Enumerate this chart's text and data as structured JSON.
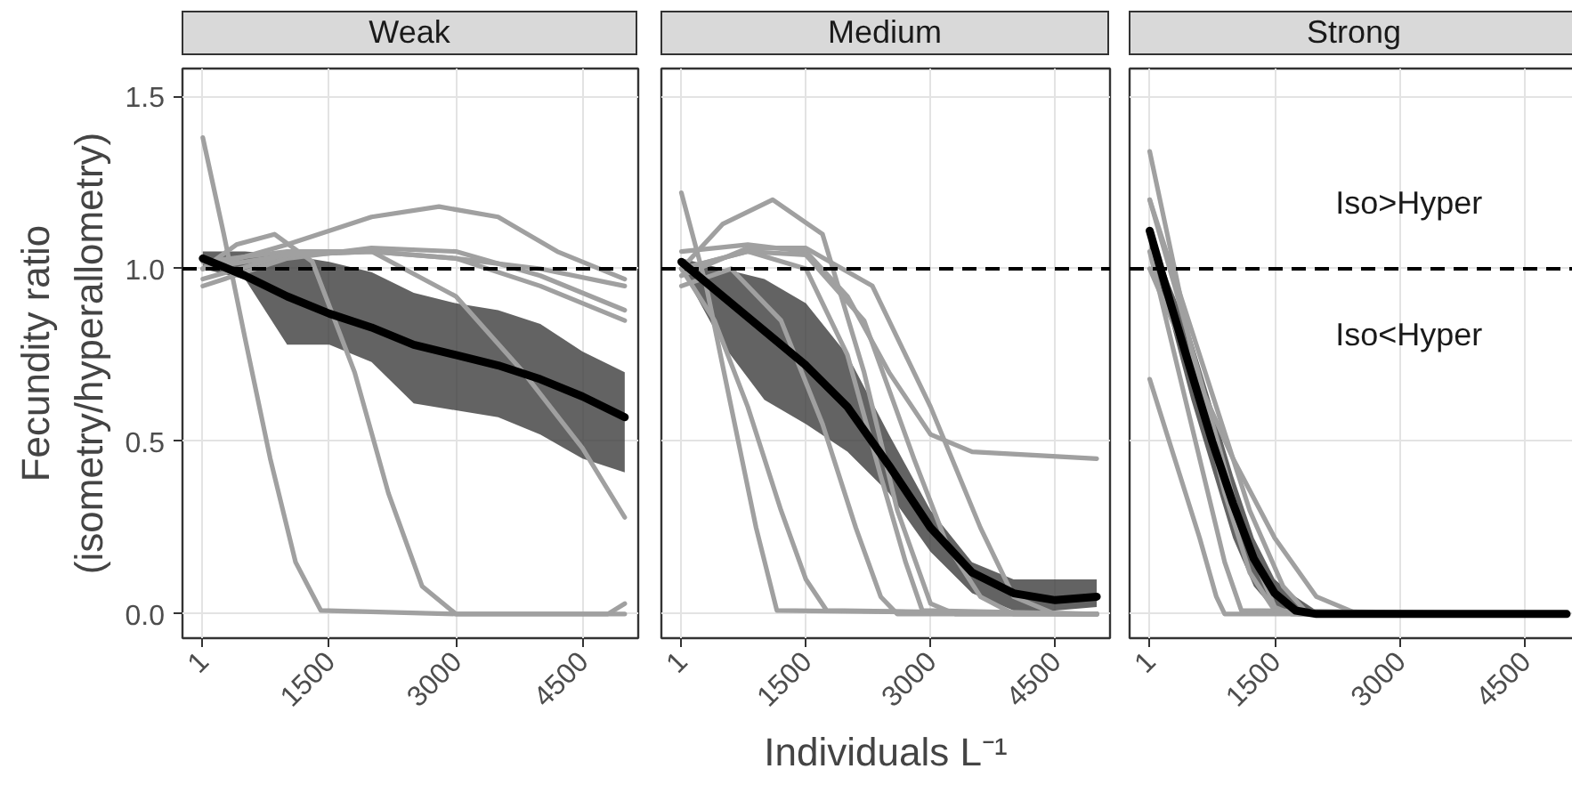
{
  "chart_data": [
    {
      "type": "line",
      "title": "Weak",
      "ylabel": "Fecundity ratio\n(isometry/hyperallometry)",
      "xlim": [
        -240,
        5160
      ],
      "ylim": [
        -0.07,
        1.58
      ],
      "xticks": [
        1,
        1500,
        3000,
        4500
      ],
      "yticks": [
        {
          "value": 0,
          "label": "0.0"
        },
        {
          "value": 0.5,
          "label": "0.5"
        },
        {
          "value": 1,
          "label": "1.0"
        },
        {
          "value": 1.5,
          "label": "1.5"
        }
      ],
      "grid": true,
      "ref_lines": [
        {
          "axis": "y",
          "value": 1,
          "label": null,
          "color": "#000000",
          "line_style": "dashed"
        }
      ],
      "series": [
        {
          "color": "#a0a0a0",
          "x": [
            1,
            250,
            500,
            800,
            1100,
            1400,
            3000,
            5000
          ],
          "values": [
            1.38,
            1.1,
            0.8,
            0.45,
            0.15,
            0.01,
            0.0,
            0.0
          ]
        },
        {
          "color": "#a0a0a0",
          "x": [
            1,
            400,
            850,
            1300,
            1800,
            2200,
            2600,
            3000,
            4800,
            5000
          ],
          "values": [
            1.0,
            1.07,
            1.1,
            1.02,
            0.7,
            0.35,
            0.08,
            0.0,
            0.0,
            0.03
          ]
        },
        {
          "color": "#a0a0a0",
          "x": [
            1,
            1000,
            2000,
            2800,
            3500,
            4200,
            5000
          ],
          "values": [
            1.0,
            1.07,
            1.15,
            1.18,
            1.15,
            1.05,
            0.97
          ]
        },
        {
          "color": "#a0a0a0",
          "x": [
            1,
            1000,
            2000,
            3000,
            3800,
            4500,
            5000
          ],
          "values": [
            0.97,
            1.04,
            1.05,
            0.92,
            0.7,
            0.48,
            0.28
          ]
        },
        {
          "color": "#a0a0a0",
          "x": [
            1,
            1000,
            2000,
            3000,
            4000,
            5000
          ],
          "values": [
            0.95,
            1.03,
            1.06,
            1.05,
            0.98,
            0.88
          ]
        },
        {
          "color": "#a0a0a0",
          "x": [
            1,
            1000,
            2000,
            3000,
            4000,
            5000
          ],
          "values": [
            1.0,
            1.04,
            1.05,
            1.03,
            0.95,
            0.85
          ]
        },
        {
          "color": "#a0a0a0",
          "x": [
            1,
            1000,
            2000,
            3000,
            4000,
            5000
          ],
          "values": [
            1.02,
            1.05,
            1.05,
            1.03,
            1.0,
            0.95
          ]
        },
        {
          "color": "#000000",
          "x": [
            1,
            500,
            1000,
            1500,
            2000,
            2500,
            3000,
            3500,
            4000,
            4500,
            5000
          ],
          "values": [
            1.03,
            0.98,
            0.92,
            0.87,
            0.83,
            0.78,
            0.75,
            0.72,
            0.68,
            0.63,
            0.57
          ],
          "lower": [
            1.0,
            0.97,
            0.78,
            0.78,
            0.73,
            0.61,
            0.59,
            0.57,
            0.52,
            0.45,
            0.41
          ],
          "upper": [
            1.05,
            1.05,
            1.04,
            1.02,
            0.99,
            0.93,
            0.9,
            0.88,
            0.84,
            0.76,
            0.7
          ]
        }
      ]
    },
    {
      "type": "line",
      "title": "Medium",
      "xlabel": "Individuals L⁻¹",
      "xlim": [
        -240,
        5160
      ],
      "ylim": [
        -0.07,
        1.58
      ],
      "xticks": [
        1,
        1500,
        3000,
        4500
      ],
      "yticks": [
        0,
        0.5,
        1,
        1.5
      ],
      "tick_labels": "x",
      "grid": true,
      "ref_lines": [
        {
          "axis": "y",
          "value": 1,
          "label": null,
          "color": "#000000",
          "line_style": "dashed"
        }
      ],
      "series": [
        {
          "color": "#a0a0a0",
          "x": [
            1,
            300,
            600,
            900,
            1150,
            5000
          ],
          "values": [
            1.22,
            0.95,
            0.6,
            0.25,
            0.01,
            0.0
          ]
        },
        {
          "color": "#a0a0a0",
          "x": [
            1,
            400,
            800,
            1200,
            1500,
            1750,
            5000
          ],
          "values": [
            1.0,
            0.85,
            0.6,
            0.3,
            0.1,
            0.01,
            0.0
          ]
        },
        {
          "color": "#a0a0a0",
          "x": [
            1,
            500,
            1100,
            1700,
            2200,
            2600,
            3000,
            3300,
            5000
          ],
          "values": [
            1.0,
            1.13,
            1.2,
            1.1,
            0.7,
            0.3,
            0.03,
            0.0,
            0.0
          ]
        },
        {
          "color": "#a0a0a0",
          "x": [
            1,
            800,
            1500,
            2000,
            2500,
            3000,
            3500,
            5000
          ],
          "values": [
            1.05,
            1.07,
            1.05,
            0.92,
            0.7,
            0.52,
            0.47,
            0.45
          ]
        },
        {
          "color": "#a0a0a0",
          "x": [
            1,
            800,
            1500,
            2200,
            2800,
            3200,
            3600,
            4000,
            5000
          ],
          "values": [
            1.0,
            1.05,
            1.04,
            0.85,
            0.45,
            0.2,
            0.05,
            0.0,
            0.0
          ]
        },
        {
          "color": "#a0a0a0",
          "x": [
            1,
            800,
            1500,
            2300,
            3000,
            3600,
            4000,
            4500,
            5000
          ],
          "values": [
            0.98,
            1.06,
            1.06,
            0.95,
            0.6,
            0.25,
            0.05,
            0.0,
            0.0
          ]
        },
        {
          "color": "#a0a0a0",
          "x": [
            1,
            800,
            1500,
            2000,
            2400,
            2700,
            2900,
            5000
          ],
          "values": [
            1.0,
            1.05,
            1.0,
            0.75,
            0.4,
            0.15,
            0.01,
            0.0
          ]
        },
        {
          "color": "#a0a0a0",
          "x": [
            1,
            600,
            1200,
            1700,
            2100,
            2400,
            2600,
            5000
          ],
          "values": [
            0.95,
            1.0,
            0.85,
            0.55,
            0.25,
            0.05,
            0.0,
            0.0
          ]
        },
        {
          "color": "#000000",
          "x": [
            1,
            500,
            1000,
            1500,
            2000,
            2500,
            3000,
            3500,
            4000,
            4500,
            5000
          ],
          "values": [
            1.02,
            0.92,
            0.82,
            0.72,
            0.6,
            0.43,
            0.25,
            0.12,
            0.06,
            0.04,
            0.05
          ],
          "lower": [
            1.0,
            0.78,
            0.62,
            0.55,
            0.47,
            0.35,
            0.18,
            0.06,
            0.01,
            0.01,
            0.02
          ],
          "upper": [
            1.03,
            1.0,
            0.97,
            0.9,
            0.75,
            0.52,
            0.3,
            0.15,
            0.1,
            0.1,
            0.1
          ]
        }
      ]
    },
    {
      "type": "line",
      "title": "Strong",
      "xlim": [
        -240,
        5160
      ],
      "ylim": [
        -0.07,
        1.58
      ],
      "xticks": [
        1,
        1500,
        3000,
        4500
      ],
      "yticks": [
        0,
        0.5,
        1,
        1.5
      ],
      "tick_labels": "x",
      "grid": true,
      "ref_lines": [
        {
          "axis": "y",
          "value": 1,
          "label": null,
          "color": "#000000",
          "line_style": "dashed"
        }
      ],
      "annotations": [
        "Iso>Hyper",
        "Iso<Hyper"
      ],
      "series": [
        {
          "color": "#a0a0a0",
          "x": [
            1,
            300,
            600,
            900,
            1200,
            1500,
            1800,
            5000
          ],
          "values": [
            1.34,
            1.0,
            0.65,
            0.35,
            0.12,
            0.01,
            0.0,
            0.0
          ]
        },
        {
          "color": "#a0a0a0",
          "x": [
            1,
            300,
            700,
            1100,
            1500,
            1700,
            5000
          ],
          "values": [
            1.2,
            0.95,
            0.6,
            0.25,
            0.02,
            0.0,
            0.0
          ]
        },
        {
          "color": "#a0a0a0",
          "x": [
            1,
            300,
            600,
            800,
            900,
            5000
          ],
          "values": [
            0.68,
            0.45,
            0.22,
            0.05,
            0.0,
            0.0
          ]
        },
        {
          "color": "#a0a0a0",
          "x": [
            1,
            300,
            600,
            900,
            1100,
            5000
          ],
          "values": [
            1.05,
            0.75,
            0.45,
            0.15,
            0.01,
            0.0
          ]
        },
        {
          "color": "#a0a0a0",
          "x": [
            1,
            500,
            1000,
            1500,
            2000,
            2500,
            5000
          ],
          "values": [
            1.0,
            0.72,
            0.45,
            0.22,
            0.05,
            0.0,
            0.0
          ]
        },
        {
          "color": "#a0a0a0",
          "x": [
            1,
            400,
            800,
            1200,
            1600,
            1900,
            5000
          ],
          "values": [
            1.2,
            0.9,
            0.6,
            0.3,
            0.08,
            0.0,
            0.0
          ]
        },
        {
          "color": "#000000",
          "x": [
            1,
            250,
            500,
            750,
            1000,
            1250,
            1500,
            1750,
            2000,
            5000
          ],
          "values": [
            1.11,
            0.9,
            0.7,
            0.5,
            0.32,
            0.16,
            0.06,
            0.01,
            0.0,
            0.0
          ],
          "lower": [
            1.05,
            0.85,
            0.62,
            0.42,
            0.22,
            0.08,
            0.01,
            0.0,
            0.0,
            0.0
          ],
          "upper": [
            1.11,
            0.95,
            0.8,
            0.6,
            0.4,
            0.22,
            0.1,
            0.05,
            0.01,
            0.01
          ]
        }
      ]
    }
  ]
}
